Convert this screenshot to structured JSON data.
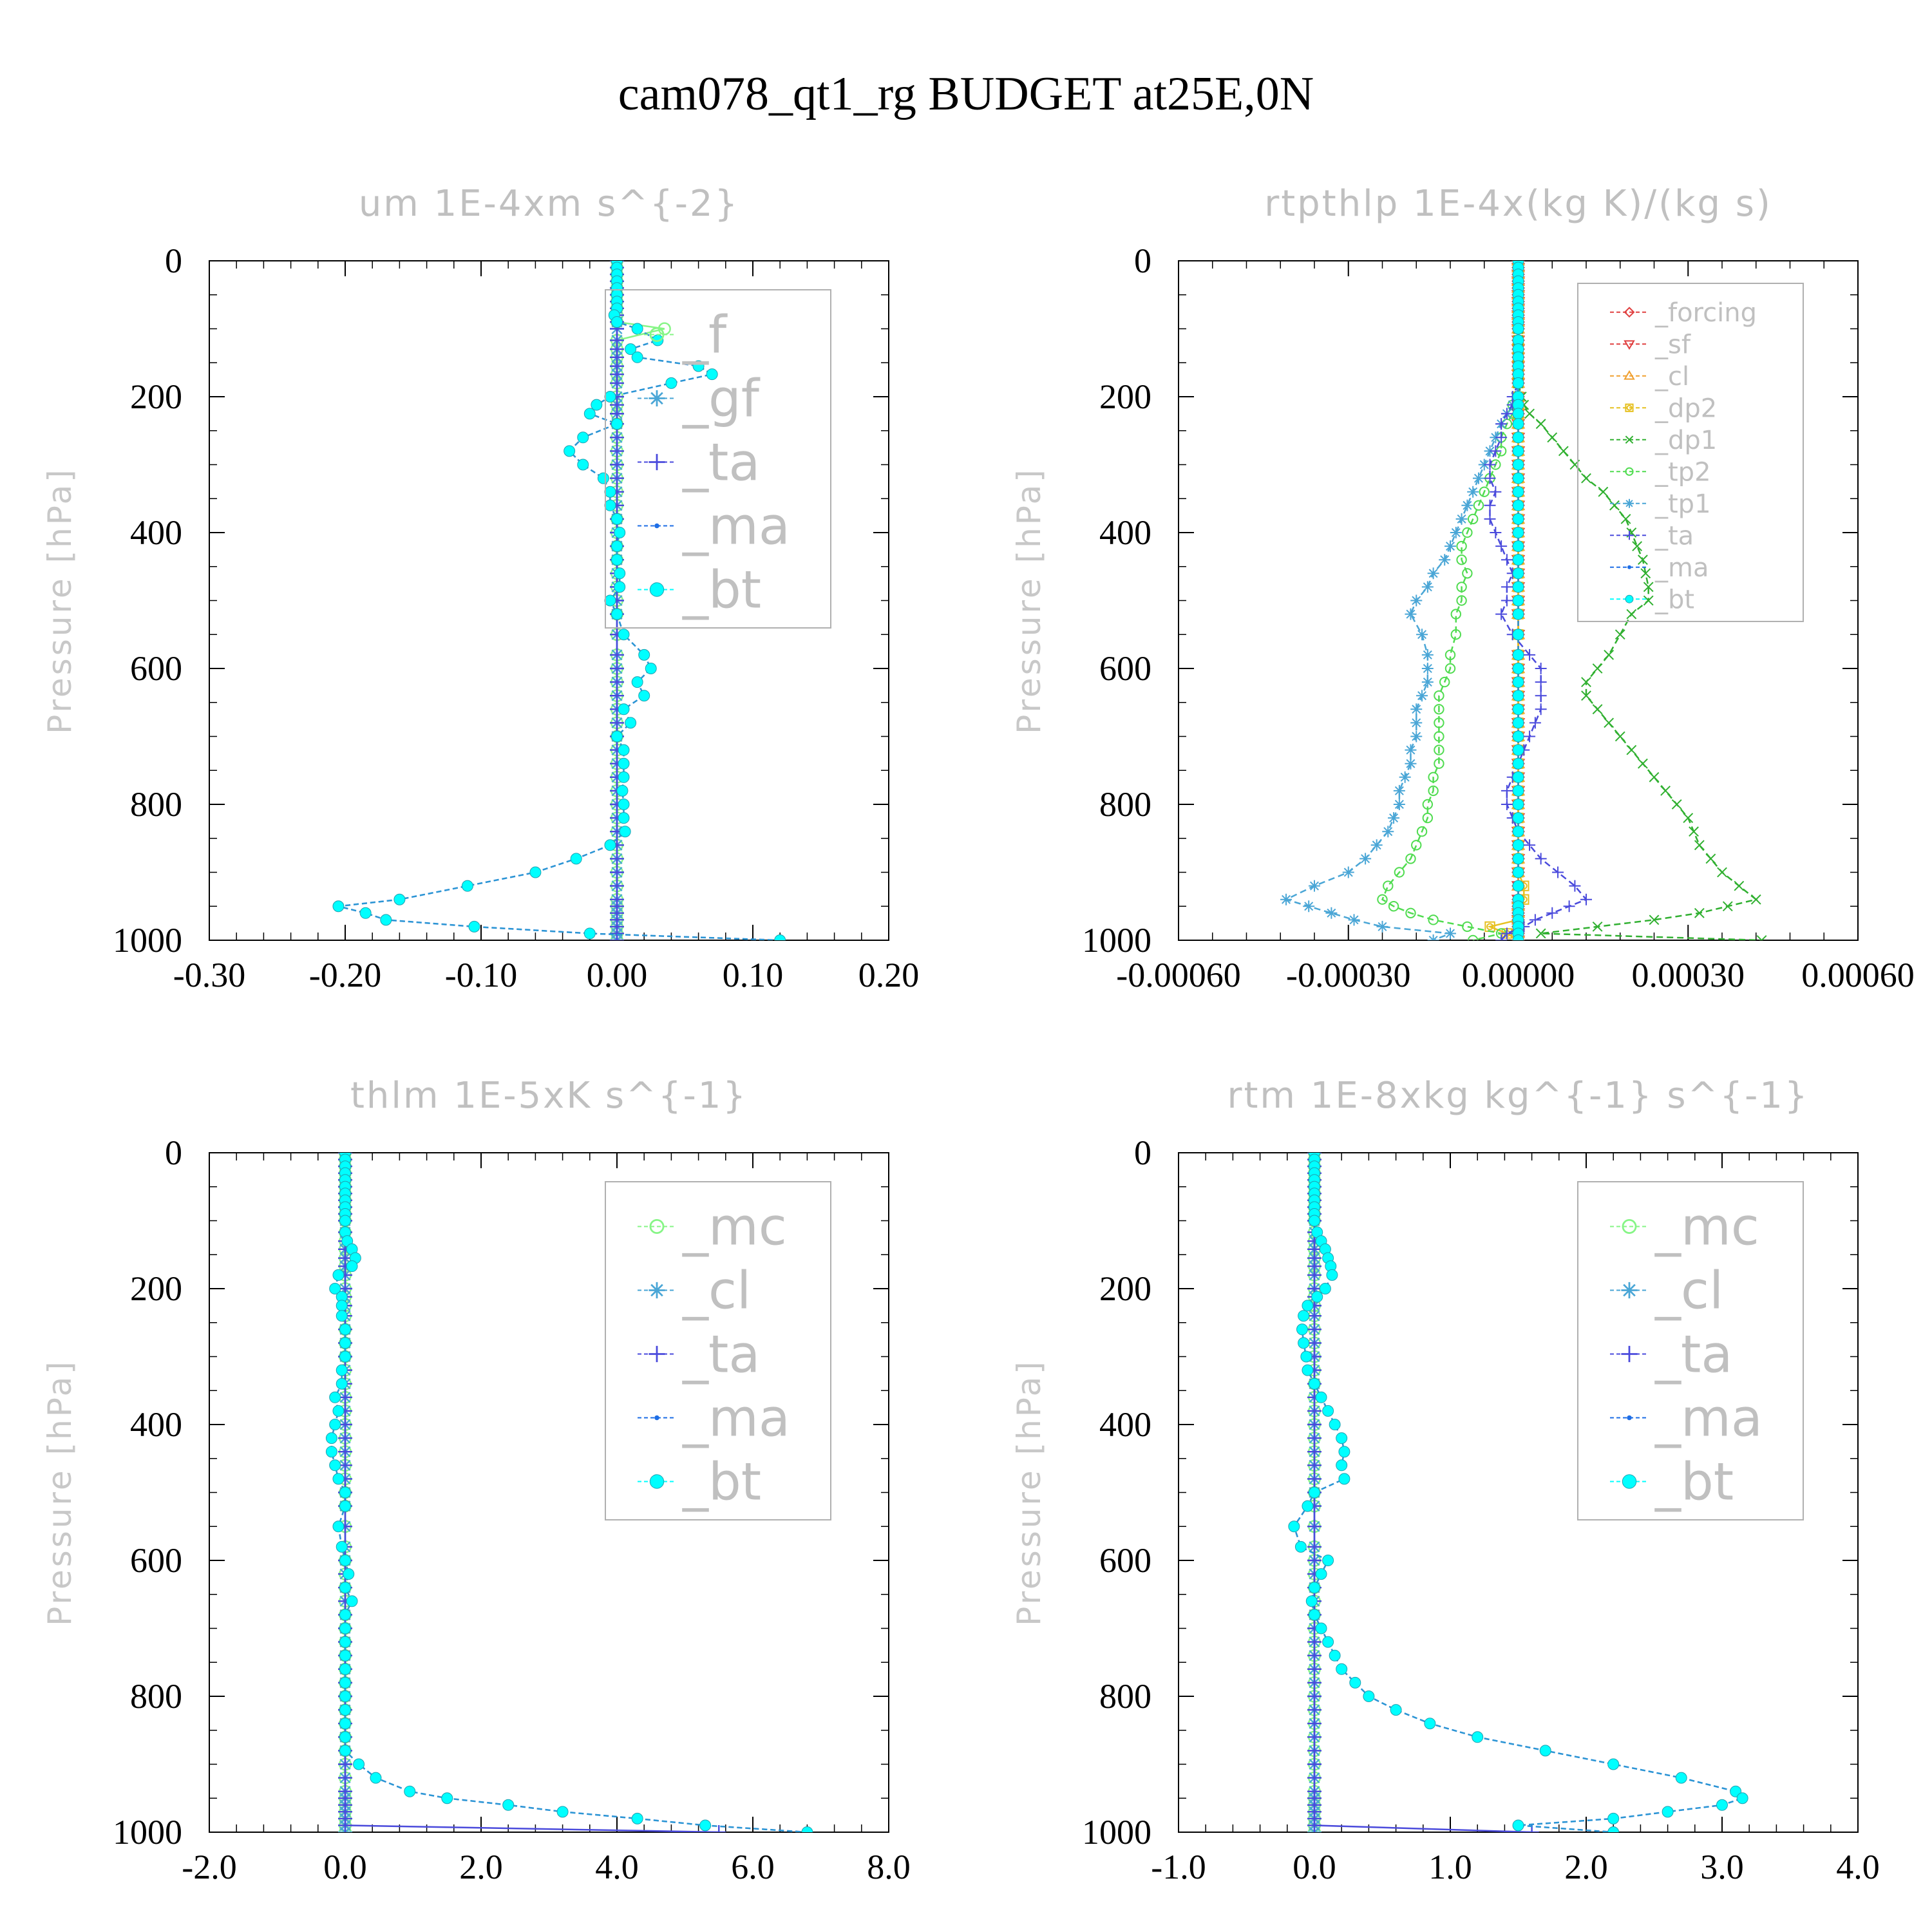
{
  "chart_data": {
    "title": "cam078_qt1_rg  BUDGET at25E,0N",
    "levels": [
      0,
      10,
      20,
      30,
      40,
      50,
      60,
      70,
      80,
      90,
      100,
      117,
      130,
      142,
      155,
      167,
      180,
      200,
      212,
      225,
      240,
      260,
      280,
      300,
      320,
      340,
      360,
      380,
      400,
      420,
      440,
      460,
      480,
      500,
      520,
      550,
      580,
      600,
      620,
      640,
      660,
      680,
      700,
      720,
      740,
      760,
      780,
      800,
      820,
      840,
      860,
      880,
      900,
      920,
      940,
      950,
      960,
      970,
      980,
      990,
      1000
    ],
    "panels": [
      {
        "type": "line",
        "title": "um  1E-4xm s^{-2}",
        "ylabel": "Pressure [hPa]",
        "xlim": [
          -0.3,
          0.2
        ],
        "xticks": [
          "-0.30",
          "-0.20",
          "-0.10",
          "0.00",
          "0.10",
          "0.20"
        ],
        "ylim": [
          1000,
          0
        ],
        "yticks": [
          "0",
          "200",
          "400",
          "600",
          "800",
          "1000"
        ],
        "legend_position": "top-right",
        "series": [
          {
            "name": "_f",
            "color": "#86f586",
            "marker": "circle-open",
            "zero": true,
            "overrides": {
              "100": 0.035
            }
          },
          {
            "name": "_gf",
            "color": "#4aa6d6",
            "marker": "asterisk",
            "zero": true
          },
          {
            "name": "_ta",
            "color": "#4a4adc",
            "marker": "plus",
            "zero": true
          },
          {
            "name": "_ma",
            "color": "#1e6ee6",
            "marker": "dot",
            "values": [
              0,
              0,
              0,
              0,
              0,
              0,
              0,
              0,
              -0.002,
              0,
              0.015,
              0.03,
              0.01,
              0.015,
              0.06,
              0.07,
              0.04,
              -0.005,
              -0.015,
              -0.02,
              0,
              -0.025,
              -0.035,
              -0.025,
              -0.01,
              -0.005,
              -0.005,
              0,
              0.002,
              0,
              0,
              0.002,
              0.002,
              -0.005,
              0,
              0.005,
              0.02,
              0.025,
              0.015,
              0.02,
              0.005,
              0.01,
              0,
              0.005,
              0.005,
              0.005,
              0.004,
              0.005,
              0.005,
              0.006,
              -0.005,
              -0.03,
              -0.06,
              -0.11,
              -0.16,
              -0.205,
              -0.185,
              -0.17,
              -0.105,
              -0.02,
              0.12
            ]
          },
          {
            "name": "_bt",
            "color": "#00ffff",
            "marker": "dot-big",
            "values": [
              0,
              0,
              0,
              0,
              0,
              0,
              0,
              0,
              -0.002,
              0,
              0.015,
              0.03,
              0.01,
              0.015,
              0.06,
              0.07,
              0.04,
              -0.005,
              -0.015,
              -0.02,
              0,
              -0.025,
              -0.035,
              -0.025,
              -0.01,
              -0.005,
              -0.005,
              0,
              0.002,
              0,
              0,
              0.002,
              0.002,
              -0.005,
              0,
              0.005,
              0.02,
              0.025,
              0.015,
              0.02,
              0.005,
              0.01,
              0,
              0.005,
              0.005,
              0.005,
              0.004,
              0.005,
              0.005,
              0.006,
              -0.005,
              -0.03,
              -0.06,
              -0.11,
              -0.16,
              -0.205,
              -0.185,
              -0.17,
              -0.105,
              -0.02,
              0.12
            ]
          }
        ]
      },
      {
        "type": "line",
        "title": "rtpthlp  1E-4x(kg K)/(kg s)",
        "ylabel": "Pressure [hPa]",
        "xlim": [
          -0.0006,
          0.0006
        ],
        "xticks": [
          "-0.00060",
          "-0.00030",
          "0.00000",
          "0.00030",
          "0.00060"
        ],
        "ylim": [
          1000,
          0
        ],
        "yticks": [
          "0",
          "200",
          "400",
          "600",
          "800",
          "1000"
        ],
        "legend_position": "top-right",
        "series": [
          {
            "name": "_forcing",
            "color": "#e04040",
            "marker": "diamond",
            "zero": true
          },
          {
            "name": "_sf",
            "color": "#e04040",
            "marker": "triangle-down",
            "zero": true
          },
          {
            "name": "_cl",
            "color": "#f0a030",
            "marker": "triangle-up",
            "zero": true
          },
          {
            "name": "_dp2",
            "color": "#e6c020",
            "marker": "square-circle",
            "zero": true,
            "overrides": {
              "920": 1e-05,
              "940": 1e-05,
              "980": -5e-05,
              "990": -2e-05
            }
          },
          {
            "name": "_dp1",
            "color": "#30b030",
            "marker": "cross",
            "values": [
              0,
              0,
              0,
              0,
              0,
              0,
              0,
              0,
              0,
              0,
              0,
              0,
              0,
              0,
              0,
              0,
              0,
              6e-06,
              1e-05,
              2e-05,
              4e-05,
              6e-05,
              8e-05,
              0.0001,
              0.00012,
              0.00015,
              0.00017,
              0.00019,
              0.0002,
              0.00021,
              0.00022,
              0.000225,
              0.00023,
              0.00023,
              0.0002,
              0.00018,
              0.00016,
              0.00014,
              0.00012,
              0.00012,
              0.00014,
              0.00016,
              0.00018,
              0.0002,
              0.00022,
              0.00024,
              0.00026,
              0.00028,
              0.0003,
              0.00031,
              0.00032,
              0.00034,
              0.00036,
              0.00039,
              0.00042,
              0.00037,
              0.00032,
              0.00024,
              0.00014,
              4e-05,
              0.00043
            ]
          },
          {
            "name": "_tp2",
            "color": "#50dc50",
            "marker": "circle-open",
            "values": [
              0,
              0,
              0,
              0,
              0,
              0,
              0,
              0,
              0,
              0,
              0,
              0,
              0,
              0,
              0,
              0,
              0,
              0,
              -1e-05,
              -1e-05,
              -2e-05,
              -3e-05,
              -3e-05,
              -4e-05,
              -5e-05,
              -6e-05,
              -7e-05,
              -8e-05,
              -9e-05,
              -0.0001,
              -0.0001,
              -9e-05,
              -0.0001,
              -0.0001,
              -0.00011,
              -0.00011,
              -0.00012,
              -0.00012,
              -0.00013,
              -0.00014,
              -0.00014,
              -0.00014,
              -0.00014,
              -0.00014,
              -0.00014,
              -0.00015,
              -0.00015,
              -0.00016,
              -0.00016,
              -0.00017,
              -0.00018,
              -0.00019,
              -0.00021,
              -0.00023,
              -0.00024,
              -0.00022,
              -0.00019,
              -0.00015,
              -9e-05,
              -3e-05,
              -8e-05
            ]
          },
          {
            "name": "_tp1",
            "color": "#4aa6d6",
            "marker": "asterisk",
            "values": [
              0,
              0,
              0,
              0,
              0,
              0,
              0,
              0,
              0,
              0,
              0,
              0,
              0,
              0,
              0,
              0,
              0,
              -5e-06,
              -1e-05,
              -2e-05,
              -3e-05,
              -4e-05,
              -5e-05,
              -6e-05,
              -7e-05,
              -8e-05,
              -9e-05,
              -0.0001,
              -0.00011,
              -0.00012,
              -0.00013,
              -0.00015,
              -0.00016,
              -0.00018,
              -0.00019,
              -0.00017,
              -0.00016,
              -0.00016,
              -0.00016,
              -0.00017,
              -0.00018,
              -0.00018,
              -0.00018,
              -0.00019,
              -0.00019,
              -0.0002,
              -0.00021,
              -0.00021,
              -0.00022,
              -0.00023,
              -0.00025,
              -0.00027,
              -0.0003,
              -0.00036,
              -0.00041,
              -0.00037,
              -0.00033,
              -0.00029,
              -0.00024,
              -0.00012,
              -0.00015
            ]
          },
          {
            "name": "_ta",
            "color": "#4a4adc",
            "marker": "plus",
            "values": [
              0,
              0,
              0,
              0,
              0,
              0,
              0,
              0,
              0,
              0,
              0,
              0,
              0,
              0,
              0,
              0,
              0,
              -1e-05,
              -1e-05,
              -2e-05,
              -3e-05,
              -3e-05,
              -4e-05,
              -5e-05,
              -5e-05,
              -4e-05,
              -5e-05,
              -5e-05,
              -4e-05,
              -3e-05,
              -2e-05,
              -1e-05,
              -2e-05,
              -2e-05,
              -3e-05,
              -1e-05,
              2e-05,
              4e-05,
              4e-05,
              4e-05,
              4e-05,
              3e-05,
              2e-05,
              1e-05,
              0,
              -1e-05,
              -2e-05,
              -2e-05,
              -1e-05,
              0,
              2e-05,
              4e-05,
              7e-05,
              0.0001,
              0.00012,
              9e-05,
              6e-05,
              3e-05,
              1e-05,
              -2e-05,
              -3e-05
            ]
          },
          {
            "name": "_ma",
            "color": "#1e6ee6",
            "marker": "dot",
            "zero": true
          },
          {
            "name": "_bt",
            "color": "#00ffff",
            "marker": "dot-big",
            "zero": true
          }
        ]
      },
      {
        "type": "line",
        "title": "thlm  1E-5xK s^{-1}",
        "ylabel": "Pressure [hPa]",
        "xlim": [
          -2.0,
          8.0
        ],
        "xticks": [
          "-2.0",
          "0.0",
          "2.0",
          "4.0",
          "6.0",
          "8.0"
        ],
        "ylim": [
          1000,
          0
        ],
        "yticks": [
          "0",
          "200",
          "400",
          "600",
          "800",
          "1000"
        ],
        "legend_position": "top-right",
        "series": [
          {
            "name": "_mc",
            "color": "#86f586",
            "marker": "circle-open",
            "zero": true
          },
          {
            "name": "_cl",
            "color": "#4aa6d6",
            "marker": "asterisk",
            "zero": true
          },
          {
            "name": "_ta",
            "color": "#4a4adc",
            "marker": "plus",
            "zero": true,
            "overrides": {
              "1000": 5.5
            }
          },
          {
            "name": "_ma",
            "color": "#1e6ee6",
            "marker": "dot",
            "values": [
              0,
              0,
              0,
              0,
              0,
              0,
              0,
              0,
              0,
              0,
              0,
              0,
              0.03,
              0.1,
              0.15,
              0.1,
              -0.1,
              -0.15,
              -0.05,
              -0.05,
              -0.05,
              0,
              0,
              0,
              -0.05,
              -0.05,
              -0.15,
              -0.1,
              -0.15,
              -0.2,
              -0.2,
              -0.15,
              -0.1,
              0,
              0,
              -0.1,
              -0.05,
              0,
              0.05,
              0,
              0.1,
              0,
              0,
              0,
              0,
              0,
              0,
              0,
              0,
              0,
              0,
              0,
              0.2,
              0.45,
              0.95,
              1.5,
              2.4,
              3.2,
              4.3,
              5.3,
              6.8
            ]
          },
          {
            "name": "_bt",
            "color": "#00ffff",
            "marker": "dot-big",
            "values": [
              0,
              0,
              0,
              0,
              0,
              0,
              0,
              0,
              0,
              0,
              0,
              0,
              0.03,
              0.1,
              0.15,
              0.1,
              -0.1,
              -0.15,
              -0.05,
              -0.05,
              -0.05,
              0,
              0,
              0,
              -0.05,
              -0.05,
              -0.15,
              -0.1,
              -0.15,
              -0.2,
              -0.2,
              -0.15,
              -0.1,
              0,
              0,
              -0.1,
              -0.05,
              0,
              0.05,
              0,
              0.1,
              0,
              0,
              0,
              0,
              0,
              0,
              0,
              0,
              0,
              0,
              0,
              0.2,
              0.45,
              0.95,
              1.5,
              2.4,
              3.2,
              4.3,
              5.3,
              6.8
            ]
          }
        ]
      },
      {
        "type": "line",
        "title": "rtm  1E-8xkg kg^{-1} s^{-1}",
        "ylabel": "Pressure [hPa]",
        "xlim": [
          -1.0,
          4.0
        ],
        "xticks": [
          "-1.0",
          "0.0",
          "1.0",
          "2.0",
          "3.0",
          "4.0"
        ],
        "ylim": [
          1000,
          0
        ],
        "yticks": [
          "0",
          "200",
          "400",
          "600",
          "800",
          "1000"
        ],
        "legend_position": "top-right",
        "series": [
          {
            "name": "_mc",
            "color": "#86f586",
            "marker": "circle-open",
            "zero": true
          },
          {
            "name": "_cl",
            "color": "#4aa6d6",
            "marker": "asterisk",
            "zero": true
          },
          {
            "name": "_ta",
            "color": "#4a4adc",
            "marker": "plus",
            "zero": true,
            "overrides": {
              "1000": 1.6
            }
          },
          {
            "name": "_ma",
            "color": "#1e6ee6",
            "marker": "dot",
            "values": [
              0,
              0,
              0,
              0,
              0,
              0,
              0,
              0,
              0,
              0,
              0,
              0.02,
              0.05,
              0.08,
              0.1,
              0.12,
              0.13,
              0.08,
              0.02,
              -0.05,
              -0.08,
              -0.09,
              -0.08,
              -0.06,
              -0.05,
              0,
              0.05,
              0.1,
              0.15,
              0.2,
              0.22,
              0.2,
              0.22,
              0,
              -0.05,
              -0.15,
              -0.1,
              0.1,
              0.05,
              0,
              -0.02,
              0,
              0.05,
              0.1,
              0.15,
              0.2,
              0.3,
              0.4,
              0.6,
              0.85,
              1.2,
              1.7,
              2.2,
              2.7,
              3.1,
              3.15,
              3.0,
              2.6,
              2.2,
              1.5,
              2.2
            ]
          },
          {
            "name": "_bt",
            "color": "#00ffff",
            "marker": "dot-big",
            "values": [
              0,
              0,
              0,
              0,
              0,
              0,
              0,
              0,
              0,
              0,
              0,
              0.02,
              0.05,
              0.08,
              0.1,
              0.12,
              0.13,
              0.08,
              0.02,
              -0.05,
              -0.08,
              -0.09,
              -0.08,
              -0.06,
              -0.05,
              0,
              0.05,
              0.1,
              0.15,
              0.2,
              0.22,
              0.2,
              0.22,
              0,
              -0.05,
              -0.15,
              -0.1,
              0.1,
              0.05,
              0,
              -0.02,
              0,
              0.05,
              0.1,
              0.15,
              0.2,
              0.3,
              0.4,
              0.6,
              0.85,
              1.2,
              1.7,
              2.2,
              2.7,
              3.1,
              3.15,
              3.0,
              2.6,
              2.2,
              1.5,
              2.2
            ]
          }
        ]
      }
    ]
  }
}
